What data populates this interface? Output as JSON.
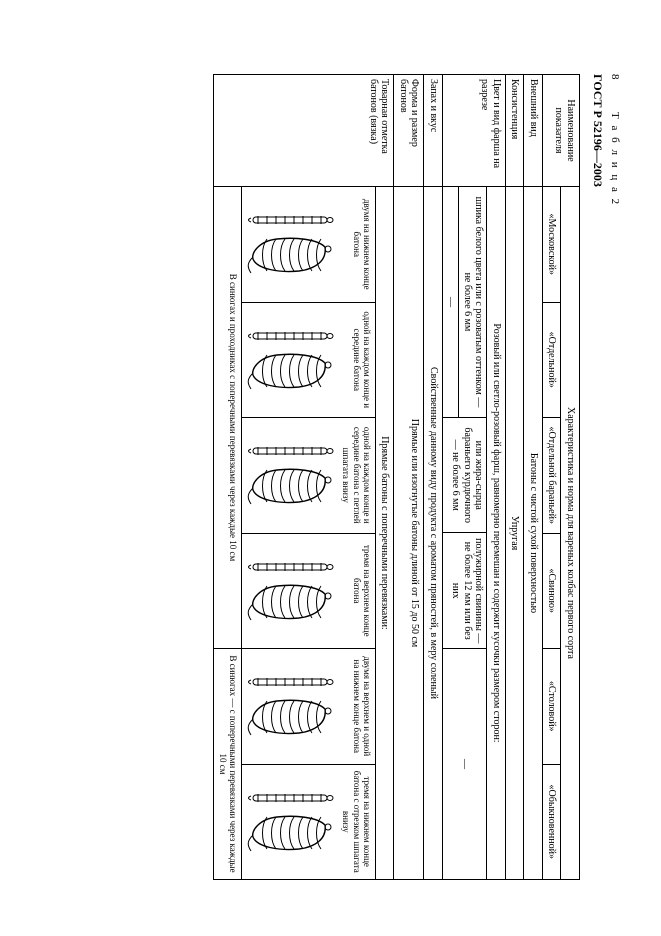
{
  "page_number": "8",
  "table_label": "Т а б л и ц а   2",
  "gost": "ГОСТ Р 52196—2003",
  "head": {
    "col0": "Наименование показателя",
    "group": "Характеристика и норма для вареных колбас первого сорта",
    "brands": [
      "«Московской»",
      "«Отдельной»",
      "«Отдельной бараньей»",
      "«Свиною»",
      "«Столовой»",
      "«Обыкновенной»"
    ]
  },
  "rows": {
    "appearance": {
      "label": "Внешний вид",
      "value": "Батоны с чистой сухой поверхностью"
    },
    "consistency": {
      "label": "Консистенция",
      "value": "Упругая"
    },
    "color": {
      "label": "Цвет и вид фарша на разрезе",
      "top": "Розовый или светло-розовый фарш, равномерно перемешан и содержит кусочки размером сторон:",
      "cells": {
        "c1": "шпика белого цвета или с розоватым оттенком — не более 6 мм",
        "c2": "—",
        "c3": "или жира-сырца бараньего курдючного — не более 6 мм",
        "c4": "полужирной свинины — не более 12 мм или без них",
        "c5": "—",
        "c6": "—"
      }
    },
    "taste": {
      "label": "Запах и вкус",
      "value": "Свойственные данному виду продукта с ароматом пряностей, в меру соленый"
    },
    "shape": {
      "label": "Форма и размер батонов",
      "value": "Прямые или изогнутые батоны длиной от 15 до 50 см"
    },
    "marking": {
      "label": "Товарная отметка батонов (вязка)",
      "top": "Прямые батоны с поперечными перевязками:",
      "ties": [
        "двумя на нижнем конце батона",
        "одной на каждом конце и середине батона",
        "одной на каждом конце и середине батона с петлей шпагата внизу",
        "тремя на верхнем конце батона",
        "двумя на верхнем и одной на нижнем конце батона",
        "тремя на нижнем конце батона с отрезком шпагата внизу"
      ],
      "stick_caption_left": "В синюгах и проходниках с поперечными перевязками через каждые 10 см",
      "stick_caption_right": "В синюгах — с поперечными перевязками через каждые 10 см"
    }
  }
}
